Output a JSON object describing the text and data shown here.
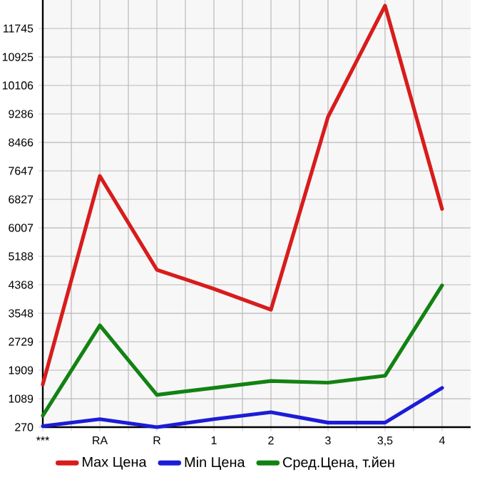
{
  "chart_data": {
    "type": "line",
    "categories": [
      "***",
      "RA",
      "R",
      "1",
      "2",
      "3",
      "3,5",
      "4"
    ],
    "series": [
      {
        "name": "Max Цена",
        "color": "#d81c1c",
        "values": [
          1500,
          7500,
          4800,
          4250,
          3650,
          9200,
          12400,
          6550
        ]
      },
      {
        "name": "Min Цена",
        "color": "#1c1cd8",
        "values": [
          300,
          500,
          270,
          500,
          700,
          400,
          400,
          1400
        ]
      },
      {
        "name": "Сред.Цена, т.йен",
        "color": "#128212",
        "values": [
          600,
          3200,
          1200,
          1400,
          1600,
          1550,
          1750,
          4350
        ]
      }
    ],
    "ylim": [
      270,
      12565
    ],
    "yticks": [
      270,
      1089,
      1909,
      2729,
      3548,
      4368,
      5188,
      6007,
      6827,
      7647,
      8466,
      9286,
      10106,
      10925,
      11745
    ],
    "grid": true,
    "legend": "bottom",
    "marker": "none",
    "line_style": "solid"
  }
}
